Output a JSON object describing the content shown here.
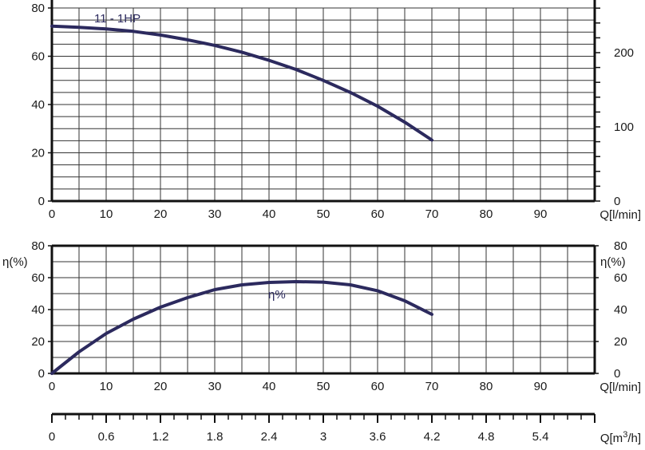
{
  "colors": {
    "curve": "#2c2a5e",
    "grid": "#333333",
    "axis": "#111111",
    "background": "#ffffff"
  },
  "chart_data": [
    {
      "type": "line",
      "title": "",
      "series": [
        {
          "name": "11 - 1HP",
          "x": [
            0,
            5,
            10,
            15,
            20,
            25,
            30,
            35,
            40,
            45,
            50,
            55,
            60,
            65,
            70
          ],
          "y": [
            72.5,
            72.0,
            71.3,
            70.3,
            68.8,
            66.8,
            64.5,
            61.7,
            58.3,
            54.5,
            50.0,
            45.0,
            39.3,
            32.7,
            25.3
          ]
        }
      ],
      "x_ticks": [
        "0",
        "10",
        "20",
        "30",
        "40",
        "50",
        "60",
        "70",
        "80",
        "90"
      ],
      "y_ticks_left": [
        "0",
        "20",
        "40",
        "60",
        "80"
      ],
      "y_ticks_right": [
        "0",
        "100",
        "200"
      ],
      "xlabel": "Q[l/min]",
      "xlim": [
        0,
        100
      ],
      "ylim": [
        0,
        80
      ],
      "grid": true
    },
    {
      "type": "line",
      "title": "",
      "series": [
        {
          "name": "η%",
          "x": [
            0,
            5,
            10,
            15,
            20,
            25,
            30,
            35,
            40,
            45,
            50,
            55,
            60,
            65,
            70
          ],
          "y": [
            0,
            13.5,
            25.0,
            34.0,
            41.5,
            47.5,
            52.5,
            55.5,
            57.0,
            57.5,
            57.2,
            55.5,
            51.8,
            45.5,
            37.0
          ]
        }
      ],
      "x_ticks": [
        "0",
        "10",
        "20",
        "30",
        "40",
        "50",
        "60",
        "70",
        "80",
        "90"
      ],
      "y_ticks_left": [
        "0",
        "20",
        "40",
        "60",
        "80"
      ],
      "y_ticks_right": [
        "0",
        "20",
        "40",
        "60",
        "80"
      ],
      "ylabel_left": "η(%)",
      "ylabel_right": "η(%)",
      "xlabel": "Q[l/min]",
      "xlim": [
        0,
        100
      ],
      "ylim": [
        0,
        80
      ],
      "grid": true
    },
    {
      "type": "axis",
      "x_ticks": [
        "0",
        "0.6",
        "1.2",
        "1.8",
        "2.4",
        "3",
        "3.6",
        "4.2",
        "4.8",
        "5.4"
      ],
      "xlabel_prefix": "Q[m",
      "xlabel_sup": "3",
      "xlabel_suffix": "/h]",
      "xlim": [
        0,
        6
      ]
    }
  ]
}
